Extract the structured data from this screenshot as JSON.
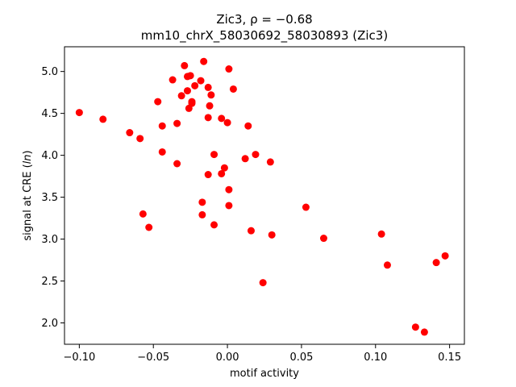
{
  "chart_data": {
    "type": "scatter",
    "title_line1": "Zic3, ρ = −0.68",
    "title_line2": "mm10_chrX_58030692_58030893 (Zic3)",
    "xlabel": "motif activity",
    "ylabel_prefix": "signal at CRE (",
    "ylabel_italic": "ln",
    "ylabel_suffix": ")",
    "xlim": [
      -0.11,
      0.16
    ],
    "ylim": [
      1.745,
      5.295
    ],
    "x_ticks": [
      {
        "value": -0.1,
        "label": "−0.10"
      },
      {
        "value": -0.05,
        "label": "−0.05"
      },
      {
        "value": 0.0,
        "label": "0.00"
      },
      {
        "value": 0.05,
        "label": "0.05"
      },
      {
        "value": 0.1,
        "label": "0.10"
      },
      {
        "value": 0.15,
        "label": "0.15"
      }
    ],
    "y_ticks": [
      {
        "value": 2.0,
        "label": "2.0"
      },
      {
        "value": 2.5,
        "label": "2.5"
      },
      {
        "value": 3.0,
        "label": "3.0"
      },
      {
        "value": 3.5,
        "label": "3.5"
      },
      {
        "value": 4.0,
        "label": "4.0"
      },
      {
        "value": 4.5,
        "label": "4.5"
      },
      {
        "value": 5.0,
        "label": "5.0"
      }
    ],
    "marker_color": "#ff0000",
    "grid": false,
    "points": [
      {
        "x": -0.1,
        "y": 4.51
      },
      {
        "x": -0.084,
        "y": 4.43
      },
      {
        "x": -0.066,
        "y": 4.27
      },
      {
        "x": -0.059,
        "y": 4.2
      },
      {
        "x": -0.057,
        "y": 3.3
      },
      {
        "x": -0.053,
        "y": 3.14
      },
      {
        "x": -0.047,
        "y": 4.64
      },
      {
        "x": -0.044,
        "y": 4.35
      },
      {
        "x": -0.044,
        "y": 4.04
      },
      {
        "x": -0.037,
        "y": 4.9
      },
      {
        "x": -0.034,
        "y": 4.38
      },
      {
        "x": -0.034,
        "y": 3.9
      },
      {
        "x": -0.031,
        "y": 4.71
      },
      {
        "x": -0.029,
        "y": 5.07
      },
      {
        "x": -0.027,
        "y": 4.94
      },
      {
        "x": -0.027,
        "y": 4.77
      },
      {
        "x": -0.026,
        "y": 4.56
      },
      {
        "x": -0.025,
        "y": 4.95
      },
      {
        "x": -0.024,
        "y": 4.64
      },
      {
        "x": -0.024,
        "y": 4.62
      },
      {
        "x": -0.022,
        "y": 4.83
      },
      {
        "x": -0.018,
        "y": 4.89
      },
      {
        "x": -0.017,
        "y": 3.44
      },
      {
        "x": -0.017,
        "y": 3.29
      },
      {
        "x": -0.016,
        "y": 5.12
      },
      {
        "x": -0.013,
        "y": 4.81
      },
      {
        "x": -0.013,
        "y": 4.45
      },
      {
        "x": -0.013,
        "y": 3.77
      },
      {
        "x": -0.012,
        "y": 4.59
      },
      {
        "x": -0.011,
        "y": 4.72
      },
      {
        "x": -0.009,
        "y": 4.01
      },
      {
        "x": -0.009,
        "y": 3.17
      },
      {
        "x": -0.004,
        "y": 4.44
      },
      {
        "x": -0.004,
        "y": 3.78
      },
      {
        "x": -0.002,
        "y": 3.85
      },
      {
        "x": 0.0,
        "y": 4.39
      },
      {
        "x": 0.001,
        "y": 5.03
      },
      {
        "x": 0.001,
        "y": 3.59
      },
      {
        "x": 0.001,
        "y": 3.4
      },
      {
        "x": 0.004,
        "y": 4.79
      },
      {
        "x": 0.012,
        "y": 3.96
      },
      {
        "x": 0.014,
        "y": 4.35
      },
      {
        "x": 0.016,
        "y": 3.1
      },
      {
        "x": 0.019,
        "y": 4.01
      },
      {
        "x": 0.024,
        "y": 2.48
      },
      {
        "x": 0.029,
        "y": 3.92
      },
      {
        "x": 0.03,
        "y": 3.05
      },
      {
        "x": 0.053,
        "y": 3.38
      },
      {
        "x": 0.065,
        "y": 3.01
      },
      {
        "x": 0.104,
        "y": 3.06
      },
      {
        "x": 0.108,
        "y": 2.69
      },
      {
        "x": 0.127,
        "y": 1.95
      },
      {
        "x": 0.133,
        "y": 1.89
      },
      {
        "x": 0.141,
        "y": 2.72
      },
      {
        "x": 0.147,
        "y": 2.8
      }
    ]
  }
}
